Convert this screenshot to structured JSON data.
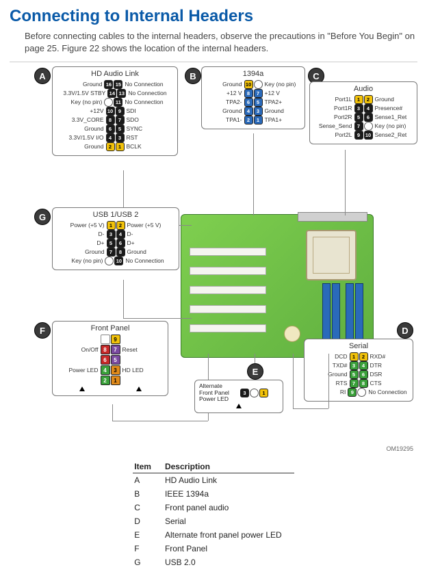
{
  "page": {
    "title": "Connecting to Internal Headers",
    "intro": "Before connecting cables to the internal headers, observe the precautions in \"Before You Begin\" on page 25.  Figure 22 shows the location of the internal headers.",
    "figure_id": "OM19295"
  },
  "colors": {
    "title": "#0a5aa8",
    "pcb": "#7fcf4f",
    "dimm": "#2a6aba",
    "pin_black": "#1a1a1a",
    "pin_yellow": "#f2c20a",
    "pin_blue": "#2a6aba",
    "pin_red": "#c62828",
    "pin_green": "#3aa03a",
    "pin_purple": "#7a4aa0",
    "pin_orange": "#e08a1a"
  },
  "headers": {
    "A": {
      "title": "HD Audio Link",
      "rows": [
        {
          "l": "Ground",
          "ln": "16",
          "rn": "15",
          "r": "No Connection",
          "c": "#1a1a1a"
        },
        {
          "l": "3.3V/1.5V STBY",
          "ln": "14",
          "rn": "13",
          "r": "No Connection",
          "c": "#1a1a1a"
        },
        {
          "l": "Key (no pin)",
          "ln": "",
          "rn": "11",
          "r": "No Connection",
          "c": "#1a1a1a",
          "key_l": true
        },
        {
          "l": "+12V",
          "ln": "10",
          "rn": "9",
          "r": "SDI",
          "c": "#1a1a1a"
        },
        {
          "l": "3.3V_CORE",
          "ln": "8",
          "rn": "7",
          "r": "SDO",
          "c": "#1a1a1a"
        },
        {
          "l": "Ground",
          "ln": "6",
          "rn": "5",
          "r": "SYNC",
          "c": "#1a1a1a"
        },
        {
          "l": "3.3V/1.5V I/O",
          "ln": "4",
          "rn": "3",
          "r": "RST",
          "c": "#1a1a1a"
        },
        {
          "l": "Ground",
          "ln": "2",
          "rn": "1",
          "r": "BCLK",
          "c": "#f2c20a"
        }
      ]
    },
    "B": {
      "title": "1394a",
      "rows": [
        {
          "l": "Ground",
          "ln": "10",
          "rn": "",
          "r": "Key (no pin)",
          "c": "#f2c20a",
          "key_r": true
        },
        {
          "l": "+12 V",
          "ln": "8",
          "rn": "7",
          "r": "+12 V",
          "c": "#2a6aba"
        },
        {
          "l": "TPA2-",
          "ln": "6",
          "rn": "5",
          "r": "TPA2+",
          "c": "#2a6aba"
        },
        {
          "l": "Ground",
          "ln": "4",
          "rn": "3",
          "r": "Ground",
          "c": "#2a6aba"
        },
        {
          "l": "TPA1-",
          "ln": "2",
          "rn": "1",
          "r": "TPA1+",
          "c": "#2a6aba"
        }
      ]
    },
    "C": {
      "title": "Audio",
      "rows": [
        {
          "l": "Port1L",
          "ln": "1",
          "rn": "2",
          "r": "Ground",
          "c": "#f2c20a"
        },
        {
          "l": "Port1R",
          "ln": "3",
          "rn": "4",
          "r": "Presence#",
          "c": "#1a1a1a"
        },
        {
          "l": "Port2R",
          "ln": "5",
          "rn": "6",
          "r": "Sense1_Ret",
          "c": "#1a1a1a"
        },
        {
          "l": "Sense_Send",
          "ln": "7",
          "rn": "",
          "r": "Key (no pin)",
          "c": "#1a1a1a",
          "key_r": true
        },
        {
          "l": "Port2L",
          "ln": "9",
          "rn": "10",
          "r": "Sense2_Ret",
          "c": "#1a1a1a"
        }
      ]
    },
    "G": {
      "title": "USB 1/USB 2",
      "rows": [
        {
          "l": "Power (+5 V)",
          "ln": "1",
          "rn": "2",
          "r": "Power (+5 V)",
          "c": "#f2c20a"
        },
        {
          "l": "D-",
          "ln": "3",
          "rn": "4",
          "r": "D-",
          "c": "#1a1a1a"
        },
        {
          "l": "D+",
          "ln": "5",
          "rn": "6",
          "r": "D+",
          "c": "#1a1a1a"
        },
        {
          "l": "Ground",
          "ln": "7",
          "rn": "8",
          "r": "Ground",
          "c": "#1a1a1a"
        },
        {
          "l": "Key (no pin)",
          "ln": "",
          "rn": "10",
          "r": "No Connection",
          "c": "#1a1a1a",
          "key_l": true
        }
      ]
    },
    "D": {
      "title": "Serial",
      "rows": [
        {
          "l": "DCD",
          "ln": "1",
          "rn": "2",
          "r": "RXD#",
          "c": "#f2c20a"
        },
        {
          "l": "TXD#",
          "ln": "3",
          "rn": "4",
          "r": "DTR",
          "c": "#3aa03a"
        },
        {
          "l": "Ground",
          "ln": "5",
          "rn": "6",
          "r": "DSR",
          "c": "#3aa03a"
        },
        {
          "l": "RTS",
          "ln": "7",
          "rn": "8",
          "r": "CTS",
          "c": "#3aa03a"
        },
        {
          "l": "RI",
          "ln": "9",
          "rn": "",
          "r": "No Connection",
          "c": "#3aa03a",
          "key_r": true
        }
      ]
    },
    "E": {
      "title": "Alternate Front Panel Power LED",
      "pins": [
        {
          "n": "3",
          "c": "#1a1a1a"
        },
        {
          "n": "",
          "key": true
        },
        {
          "n": "1",
          "c": "#f2c20a"
        }
      ]
    },
    "F": {
      "title": "Front Panel",
      "rows": [
        {
          "l": "",
          "pins": [
            {
              "n": "",
              "empty": true
            },
            {
              "n": "9",
              "c": "#f2c20a"
            }
          ],
          "r": ""
        },
        {
          "l": "On/Off",
          "pins": [
            {
              "n": "8",
              "c": "#c62828"
            },
            {
              "n": "7",
              "c": "#7a4aa0"
            }
          ],
          "r": "Reset"
        },
        {
          "l": "",
          "pins": [
            {
              "n": "6",
              "c": "#c62828"
            },
            {
              "n": "5",
              "c": "#7a4aa0"
            }
          ],
          "r": ""
        },
        {
          "l": "Power LED",
          "pins": [
            {
              "n": "4",
              "c": "#3aa03a"
            },
            {
              "n": "3",
              "c": "#e08a1a"
            }
          ],
          "r": "HD LED"
        },
        {
          "l": "",
          "pins": [
            {
              "n": "2",
              "c": "#3aa03a"
            },
            {
              "n": "1",
              "c": "#e08a1a"
            }
          ],
          "r": ""
        }
      ]
    }
  },
  "legend": {
    "head_item": "Item",
    "head_desc": "Description",
    "rows": [
      {
        "item": "A",
        "desc": "HD Audio Link"
      },
      {
        "item": "B",
        "desc": "IEEE 1394a"
      },
      {
        "item": "C",
        "desc": "Front panel audio"
      },
      {
        "item": "D",
        "desc": "Serial"
      },
      {
        "item": "E",
        "desc": "Alternate front panel power LED"
      },
      {
        "item": "F",
        "desc": "Front Panel"
      },
      {
        "item": "G",
        "desc": "USB 2.0"
      }
    ]
  }
}
